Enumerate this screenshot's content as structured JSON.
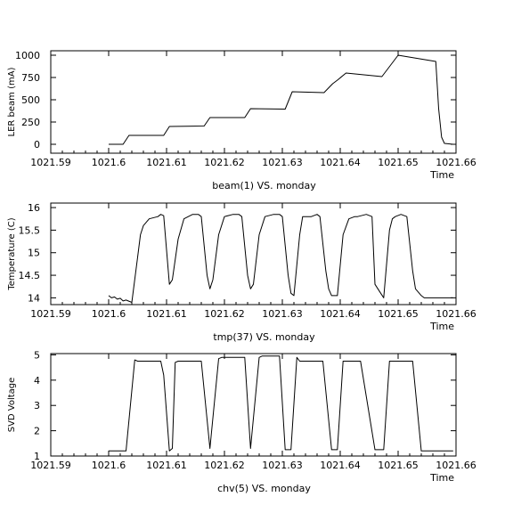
{
  "colors": {
    "background": "#ffffff",
    "line": "#000000",
    "frame": "#000000"
  },
  "chart_data": [
    {
      "type": "line",
      "caption": "beam(1) VS. monday",
      "ylabel": "LER beam (mA)",
      "xunit": "Time",
      "xlim": [
        1021.59,
        1021.66
      ],
      "ylim": [
        -100,
        1050
      ],
      "xticks": [
        1021.59,
        1021.6,
        1021.61,
        1021.62,
        1021.63,
        1021.64,
        1021.65,
        1021.66
      ],
      "xtick_labels": [
        "1021.59",
        "1021.6",
        "1021.61",
        "1021.62",
        "1021.63",
        "1021.64",
        "1021.65",
        "1021.66"
      ],
      "yticks": [
        0,
        250,
        500,
        750,
        1000
      ],
      "ytick_labels": [
        "0",
        "250",
        "500",
        "750",
        "1000"
      ],
      "grid": false,
      "series": [
        {
          "x": [
            1021.6,
            1021.6025,
            1021.6035,
            1021.6095,
            1021.6105,
            1021.6165,
            1021.6175,
            1021.6235,
            1021.6245,
            1021.6305,
            1021.6317,
            1021.6372,
            1021.6387,
            1021.6395,
            1021.641,
            1021.6472,
            1021.65,
            1021.6565,
            1021.657,
            1021.6575,
            1021.658,
            1021.6595
          ],
          "y": [
            0,
            0,
            100,
            100,
            200,
            205,
            300,
            300,
            400,
            395,
            590,
            580,
            680,
            720,
            800,
            760,
            1000,
            930,
            400,
            80,
            10,
            0
          ]
        }
      ]
    },
    {
      "type": "line",
      "caption": "tmp(37) VS. monday",
      "ylabel": "Temperature (C)",
      "xunit": "Time",
      "xlim": [
        1021.59,
        1021.66
      ],
      "ylim": [
        13.85,
        16.1
      ],
      "xticks": [
        1021.59,
        1021.6,
        1021.61,
        1021.62,
        1021.63,
        1021.64,
        1021.65,
        1021.66
      ],
      "xtick_labels": [
        "1021.59",
        "1021.6",
        "1021.61",
        "1021.62",
        "1021.63",
        "1021.64",
        "1021.65",
        "1021.66"
      ],
      "yticks": [
        14,
        14.5,
        15,
        15.5,
        16
      ],
      "ytick_labels": [
        "14",
        "14.5",
        "15",
        "15.5",
        "16"
      ],
      "grid": false,
      "series": [
        {
          "x": [
            1021.6,
            1021.6005,
            1021.601,
            1021.6015,
            1021.602,
            1021.6025,
            1021.603,
            1021.604,
            1021.605,
            1021.6055,
            1021.606,
            1021.607,
            1021.6085,
            1021.609,
            1021.6095,
            1021.6105,
            1021.611,
            1021.612,
            1021.613,
            1021.6145,
            1021.6155,
            1021.616,
            1021.617,
            1021.6175,
            1021.618,
            1021.619,
            1021.62,
            1021.6215,
            1021.6225,
            1021.623,
            1021.624,
            1021.6245,
            1021.625,
            1021.626,
            1021.627,
            1021.6285,
            1021.6295,
            1021.63,
            1021.631,
            1021.6315,
            1021.632,
            1021.633,
            1021.6335,
            1021.635,
            1021.636,
            1021.6365,
            1021.6375,
            1021.638,
            1021.6385,
            1021.6395,
            1021.6405,
            1021.6415,
            1021.6425,
            1021.643,
            1021.6445,
            1021.6455,
            1021.646,
            1021.647,
            1021.6475,
            1021.6485,
            1021.649,
            1021.6495,
            1021.6505,
            1021.6515,
            1021.6525,
            1021.653,
            1021.654,
            1021.6545,
            1021.655,
            1021.656,
            1021.6565,
            1021.6575,
            1021.6585,
            1021.6595
          ],
          "y": [
            14.05,
            14.0,
            14.02,
            13.97,
            13.99,
            13.93,
            13.95,
            13.9,
            14.9,
            15.4,
            15.6,
            15.75,
            15.8,
            15.85,
            15.82,
            14.3,
            14.4,
            15.3,
            15.75,
            15.85,
            15.85,
            15.8,
            14.5,
            14.2,
            14.4,
            15.4,
            15.8,
            15.85,
            15.85,
            15.8,
            14.5,
            14.2,
            14.3,
            15.4,
            15.8,
            15.85,
            15.85,
            15.8,
            14.5,
            14.1,
            14.05,
            15.4,
            15.8,
            15.8,
            15.85,
            15.8,
            14.6,
            14.2,
            14.05,
            14.05,
            15.4,
            15.75,
            15.8,
            15.8,
            15.85,
            15.8,
            14.3,
            14.1,
            14.0,
            15.5,
            15.75,
            15.8,
            15.85,
            15.8,
            14.6,
            14.2,
            14.05,
            14.0,
            14.0,
            14.0,
            14.0,
            14.0,
            14.0,
            14.0
          ]
        }
      ]
    },
    {
      "type": "line",
      "caption": "chv(5) VS. monday",
      "ylabel": "SVD Voltage",
      "xunit": "Time",
      "xlim": [
        1021.59,
        1021.66
      ],
      "ylim": [
        1,
        5.05
      ],
      "xticks": [
        1021.59,
        1021.6,
        1021.61,
        1021.62,
        1021.63,
        1021.64,
        1021.65,
        1021.66
      ],
      "xtick_labels": [
        "1021.59",
        "1021.6",
        "1021.61",
        "1021.62",
        "1021.63",
        "1021.64",
        "1021.65",
        "1021.66"
      ],
      "yticks": [
        1,
        2,
        3,
        4,
        5
      ],
      "ytick_labels": [
        "1",
        "2",
        "3",
        "4",
        "5"
      ],
      "grid": false,
      "series": [
        {
          "x": [
            1021.6,
            1021.603,
            1021.6045,
            1021.605,
            1021.609,
            1021.6095,
            1021.6105,
            1021.611,
            1021.6115,
            1021.612,
            1021.616,
            1021.6175,
            1021.619,
            1021.6195,
            1021.6225,
            1021.6235,
            1021.6245,
            1021.626,
            1021.6265,
            1021.6295,
            1021.6305,
            1021.6315,
            1021.6325,
            1021.633,
            1021.6335,
            1021.637,
            1021.6385,
            1021.6395,
            1021.6405,
            1021.6425,
            1021.6435,
            1021.646,
            1021.6475,
            1021.6485,
            1021.65,
            1021.6525,
            1021.654,
            1021.656,
            1021.6595
          ],
          "y": [
            1.2,
            1.2,
            4.8,
            4.75,
            4.75,
            4.2,
            1.2,
            1.3,
            4.7,
            4.75,
            4.75,
            1.3,
            4.85,
            4.9,
            4.9,
            4.9,
            1.3,
            4.9,
            4.95,
            4.95,
            1.25,
            1.25,
            4.9,
            4.75,
            4.75,
            4.75,
            1.25,
            1.25,
            4.75,
            4.75,
            4.75,
            1.25,
            1.25,
            4.75,
            4.75,
            4.75,
            1.2,
            1.2,
            1.2
          ]
        }
      ]
    }
  ]
}
